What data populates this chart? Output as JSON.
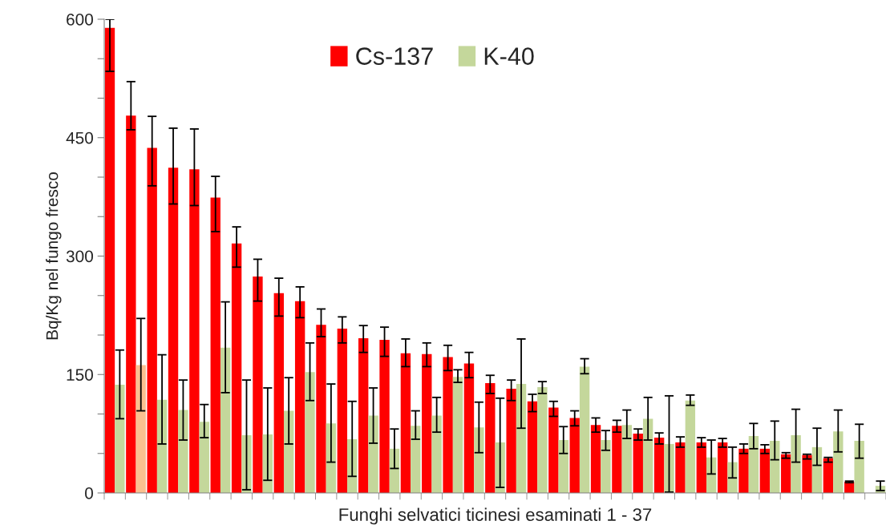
{
  "chart_data": {
    "type": "bar",
    "xlabel": "Funghi selvatici ticinesi esaminati 1 - 37",
    "ylabel": "Bq/Kg nel fungo fresco",
    "categories": [
      null,
      null,
      null,
      null,
      null,
      null,
      null,
      null,
      null,
      null,
      null,
      null,
      null,
      null,
      null,
      null,
      null,
      null,
      null,
      null,
      null,
      null,
      null,
      null,
      null,
      null,
      null,
      null,
      null,
      null,
      null,
      null,
      null,
      null,
      null,
      null,
      null
    ],
    "series": [
      {
        "name": "Cs-137",
        "color": "#ff0000",
        "values": [
          589,
          478,
          437,
          412,
          410,
          374,
          316,
          274,
          253,
          243,
          213,
          208,
          196,
          194,
          177,
          176,
          172,
          164,
          139,
          132,
          116,
          108,
          95,
          86,
          85,
          75,
          70,
          64,
          64,
          64,
          56,
          56,
          49,
          48,
          44,
          14,
          null
        ],
        "errors": [
          [
            534,
            600
          ],
          [
            460,
            521
          ],
          [
            389,
            477
          ],
          [
            366,
            462
          ],
          [
            364,
            461
          ],
          [
            331,
            401
          ],
          [
            286,
            337
          ],
          [
            243,
            296
          ],
          [
            224,
            272
          ],
          [
            222,
            261
          ],
          [
            198,
            233
          ],
          [
            190,
            223
          ],
          [
            178,
            212
          ],
          [
            173,
            210
          ],
          [
            160,
            195
          ],
          [
            160,
            190
          ],
          [
            155,
            187
          ],
          [
            146,
            178
          ],
          [
            126,
            149
          ],
          [
            117,
            143
          ],
          [
            103,
            125
          ],
          [
            97,
            116
          ],
          [
            85,
            104
          ],
          [
            77,
            95
          ],
          [
            77,
            92
          ],
          [
            67,
            81
          ],
          [
            62,
            76
          ],
          [
            58,
            71
          ],
          [
            58,
            70
          ],
          [
            58,
            69
          ],
          [
            50,
            62
          ],
          [
            50,
            61
          ],
          [
            44,
            51
          ],
          [
            43,
            49
          ],
          [
            39,
            45
          ],
          [
            13,
            15
          ],
          null
        ]
      },
      {
        "name": "K-40",
        "color": "#c4d79b",
        "colors": [
          "#c4d79b",
          "#fac090",
          "#c4d79b",
          "#c4d79b",
          "#c4d79b",
          "#c4d79b",
          "#c4d79b",
          "#c4d79b",
          "#c4d79b",
          "#c4d79b",
          "#c4d79b",
          "#c4d79b",
          "#c4d79b",
          "#c4d79b",
          "#c4d79b",
          "#c4d79b",
          "#c4d79b",
          "#c4d79b",
          "#c4d79b",
          "#c4d79b",
          "#c4d79b",
          "#c4d79b",
          "#c4d79b",
          "#c4d79b",
          "#c4d79b",
          "#c4d79b",
          "#c4d79b",
          "#c4d79b",
          "#c4d79b",
          "#c4d79b",
          "#c4d79b",
          "#c4d79b",
          "#c4d79b",
          "#c4d79b",
          "#c4d79b",
          "#c4d79b",
          "#c4d79b"
        ],
        "values": [
          137,
          162,
          118,
          105,
          90,
          184,
          73,
          74,
          104,
          153,
          88,
          68,
          98,
          56,
          85,
          98,
          147,
          83,
          64,
          138,
          134,
          67,
          160,
          67,
          86,
          94,
          62,
          117,
          45,
          39,
          72,
          66,
          73,
          58,
          78,
          66,
          9
        ],
        "errors": [
          [
            94,
            181
          ],
          [
            104,
            221
          ],
          [
            62,
            175
          ],
          [
            67,
            143
          ],
          [
            70,
            112
          ],
          [
            127,
            242
          ],
          [
            4,
            143
          ],
          [
            16,
            133
          ],
          [
            62,
            146
          ],
          [
            117,
            190
          ],
          [
            39,
            138
          ],
          [
            21,
            116
          ],
          [
            63,
            133
          ],
          [
            31,
            81
          ],
          [
            68,
            104
          ],
          [
            77,
            121
          ],
          [
            140,
            156
          ],
          [
            51,
            115
          ],
          [
            7,
            120
          ],
          [
            82,
            195
          ],
          [
            126,
            141
          ],
          [
            50,
            84
          ],
          [
            151,
            170
          ],
          [
            54,
            79
          ],
          [
            69,
            105
          ],
          [
            67,
            121
          ],
          [
            1,
            123
          ],
          [
            111,
            124
          ],
          [
            24,
            67
          ],
          [
            19,
            58
          ],
          [
            56,
            88
          ],
          [
            42,
            91
          ],
          [
            39,
            106
          ],
          [
            35,
            82
          ],
          [
            52,
            105
          ],
          [
            44,
            87
          ],
          [
            3,
            15
          ]
        ]
      }
    ],
    "ylim": [
      0,
      600
    ],
    "yticks": [
      0,
      {
        "value": 50,
        "label": null
      },
      {
        "value": 100,
        "label": null
      },
      150,
      {
        "value": 200,
        "label": null
      },
      {
        "value": 250,
        "label": null
      },
      300,
      {
        "value": 350,
        "label": null
      },
      {
        "value": 400,
        "label": null
      },
      450,
      {
        "value": 500,
        "label": null
      },
      {
        "value": 550,
        "label": null
      },
      600
    ],
    "grid": false,
    "legend": "top"
  }
}
